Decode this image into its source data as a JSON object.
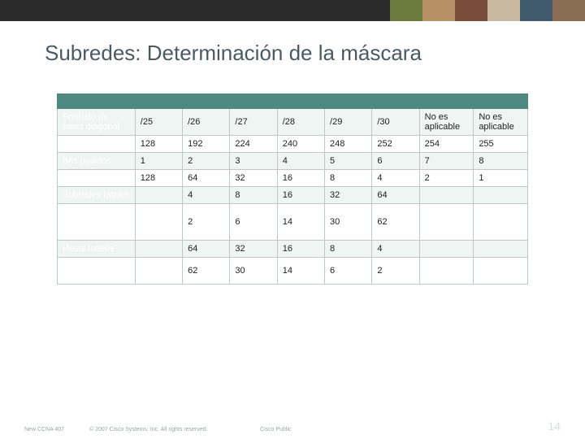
{
  "colors": {
    "topbar_bg": "#2b2b2b",
    "title_color": "#4a5a63",
    "header_row_bg": "#4f8a82",
    "label_col_bg": "#4f8a82",
    "label_col_text": "#ffffff",
    "row_odd_bg": "#eef5f3",
    "row_even_bg": "#ffffff",
    "border_color": "#bcc9c7",
    "cell_text": "#1e1e1e",
    "footer_text": "#9aa3a7",
    "page_num_color": "#d9dde0"
  },
  "title": "Subredes: Determinación de la máscara",
  "table": {
    "type": "table",
    "row_labels": [
      "Formato de barra diagonal",
      "Máscara",
      "Bits pedidos",
      "Valor",
      "Subredes totales",
      "Subredes que se pueden utilizar",
      "Hosts totales",
      "Hosts que se pueden utilizar"
    ],
    "rows": [
      [
        "/25",
        "/26",
        "/27",
        "/28",
        "/29",
        "/30",
        "No es aplicable",
        "No es aplicable"
      ],
      [
        "128",
        "192",
        "224",
        "240",
        "248",
        "252",
        "254",
        "255"
      ],
      [
        "1",
        "2",
        "3",
        "4",
        "5",
        "6",
        "7",
        "8"
      ],
      [
        "128",
        "64",
        "32",
        "16",
        "8",
        "4",
        "2",
        "1"
      ],
      [
        "",
        "4",
        "8",
        "16",
        "32",
        "64",
        "",
        ""
      ],
      [
        "",
        "2",
        "6",
        "14",
        "30",
        "62",
        "",
        ""
      ],
      [
        "",
        "64",
        "32",
        "16",
        "8",
        "4",
        "",
        ""
      ],
      [
        "",
        "62",
        "30",
        "14",
        "6",
        "2",
        "",
        ""
      ]
    ]
  },
  "footer": {
    "code": "New CCNA 407",
    "copyright": "© 2007 Cisco Systems, Inc. All rights reserved.",
    "classification": "Cisco Public",
    "page_number": "14"
  },
  "photo_strip_colors": [
    "#6b7a3e",
    "#b89068",
    "#7a4d3a",
    "#c9b8a0",
    "#3e5a6b",
    "#8a6d52"
  ]
}
